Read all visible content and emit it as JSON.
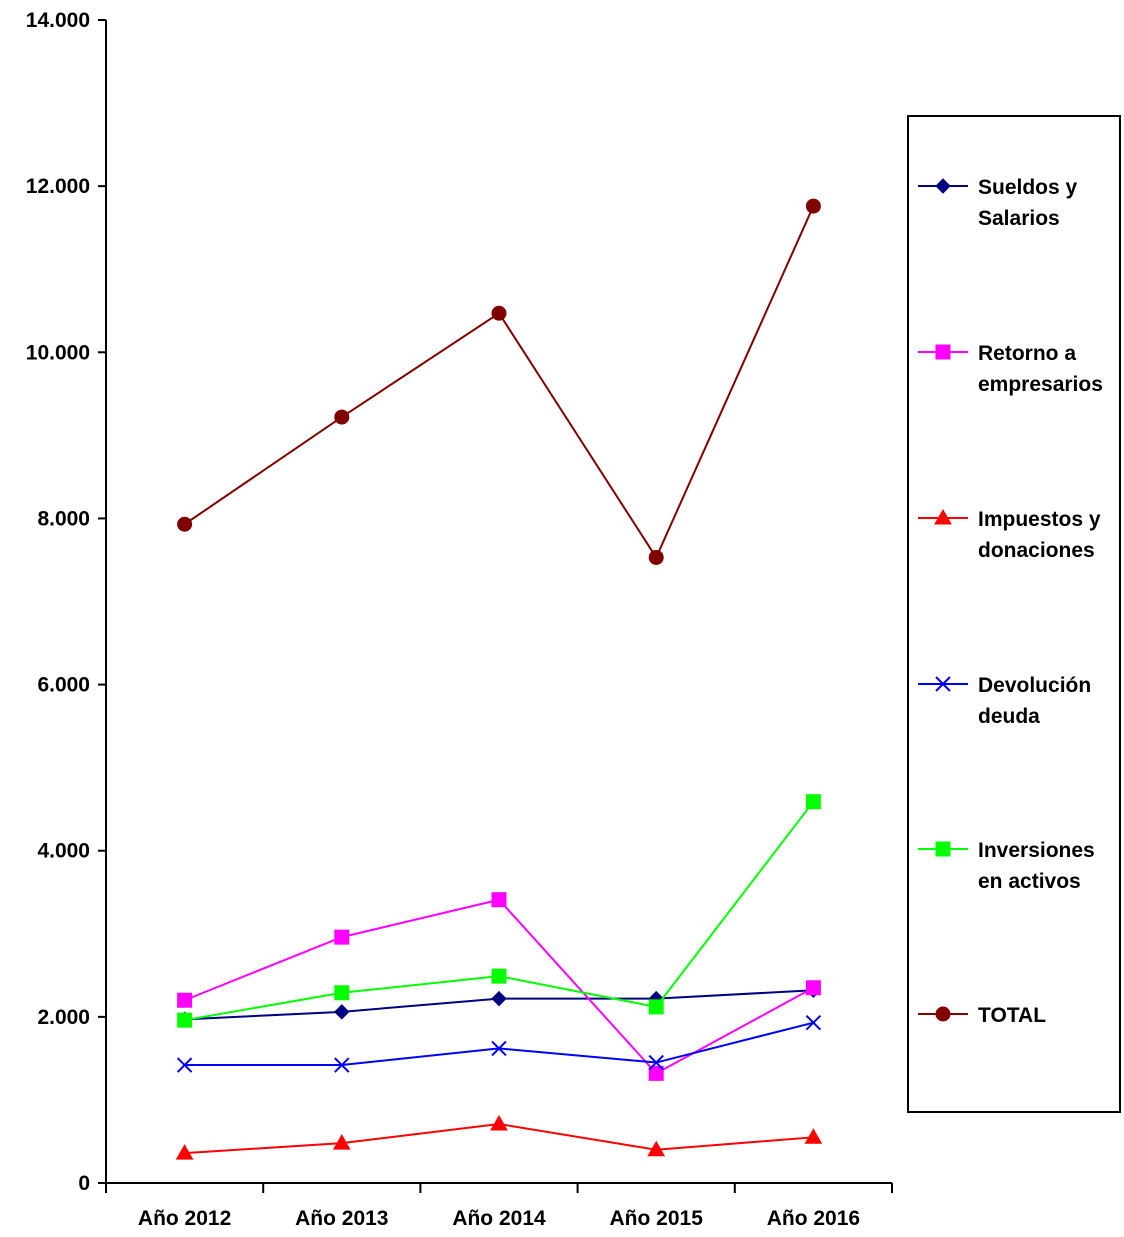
{
  "chart_data": {
    "type": "line",
    "categories": [
      "Año 2012",
      "Año 2013",
      "Año 2014",
      "Año 2015",
      "Año 2016"
    ],
    "ylim": [
      0,
      14000
    ],
    "yticks": [
      0,
      2000,
      4000,
      6000,
      8000,
      10000,
      12000,
      14000
    ],
    "ytick_labels": [
      "0",
      "2.000",
      "4.000",
      "6.000",
      "8.000",
      "10.000",
      "12.000",
      "14.000"
    ],
    "grid": false,
    "legend_position": "right",
    "series": [
      {
        "name": "Sueldos y Salarios",
        "label_lines": [
          "Sueldos y",
          "Salarios"
        ],
        "color": "#000080",
        "marker": "diamond",
        "values": [
          1970,
          2060,
          2220,
          2220,
          2320
        ]
      },
      {
        "name": "Retorno a empresarios",
        "label_lines": [
          "Retorno a",
          "empresarios"
        ],
        "color": "#ff00ff",
        "marker": "square",
        "values": [
          2200,
          2960,
          3410,
          1320,
          2350
        ]
      },
      {
        "name": "Impuestos y donaciones",
        "label_lines": [
          "Impuestos y",
          "donaciones"
        ],
        "color": "#ff0000",
        "marker": "triangle",
        "values": [
          360,
          480,
          710,
          400,
          550
        ]
      },
      {
        "name": "Devolución deuda",
        "label_lines": [
          "Devolución",
          "deuda"
        ],
        "color": "#0000ff",
        "marker": "x",
        "values": [
          1420,
          1420,
          1620,
          1450,
          1930
        ]
      },
      {
        "name": "Inversiones en activos",
        "label_lines": [
          "Inversiones",
          "en activos"
        ],
        "color": "#00ff00",
        "marker": "square",
        "values": [
          1960,
          2290,
          2490,
          2120,
          4590
        ]
      },
      {
        "name": "TOTAL",
        "label_lines": [
          "TOTAL"
        ],
        "color": "#800000",
        "marker": "circle",
        "values": [
          7930,
          9220,
          10470,
          7530,
          11760
        ]
      }
    ]
  }
}
